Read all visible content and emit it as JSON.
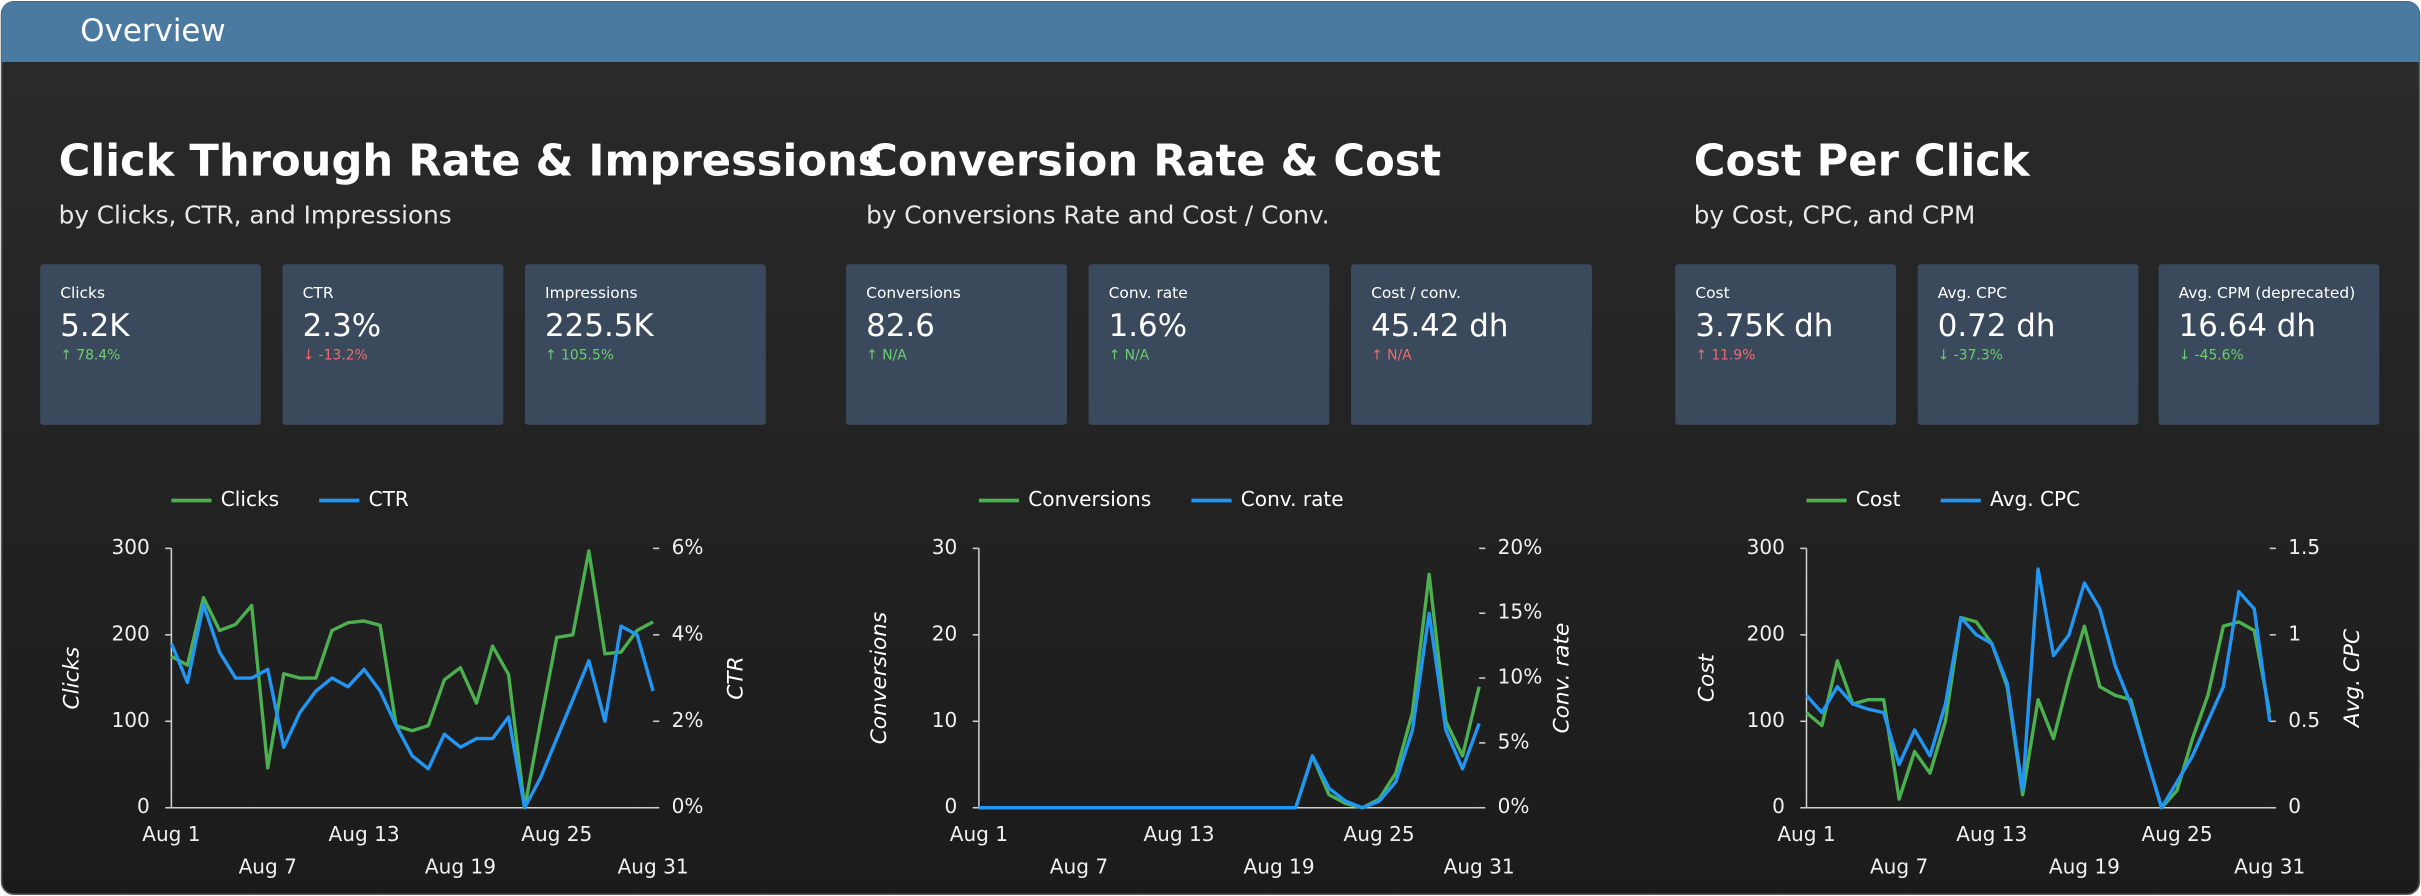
{
  "header": {
    "title": "Overview"
  },
  "sections": [
    {
      "title": "Click Through Rate & Impressions",
      "subtitle": "by Clicks, CTR, and Impressions",
      "kpis": [
        {
          "label": "Clicks",
          "value": "5.2K",
          "change": "↑ 78.4%",
          "change_color": "#6ccf6c"
        },
        {
          "label": "CTR",
          "value": "2.3%",
          "change": "↓ -13.2%",
          "change_color": "#f06a6a"
        },
        {
          "label": "Impressions",
          "value": "225.5K",
          "change": "↑ 105.5%",
          "change_color": "#6ccf6c"
        }
      ]
    },
    {
      "title": "Conversion Rate & Cost",
      "subtitle": "by Conversions Rate and Cost / Conv.",
      "kpis": [
        {
          "label": "Conversions",
          "value": "82.6",
          "change": "↑ N/A",
          "change_color": "#6ccf6c"
        },
        {
          "label": "Conv. rate",
          "value": "1.6%",
          "change": "↑ N/A",
          "change_color": "#6ccf6c"
        },
        {
          "label": "Cost / conv.",
          "value": "45.42 dh",
          "change": "↑ N/A",
          "change_color": "#f06a6a"
        }
      ]
    },
    {
      "title": "Cost Per Click",
      "subtitle": "by Cost, CPC, and CPM",
      "kpis": [
        {
          "label": "Cost",
          "value": "3.75K dh",
          "change": "↑ 11.9%",
          "change_color": "#f06a6a"
        },
        {
          "label": "Avg. CPC",
          "value": "0.72 dh",
          "change": "↓ -37.3%",
          "change_color": "#6ccf6c"
        },
        {
          "label": "Avg. CPM (deprecated)",
          "value": "16.64 dh",
          "change": "↓ -45.6%",
          "change_color": "#6ccf6c"
        }
      ]
    }
  ],
  "chart_data": [
    {
      "type": "line",
      "categories": [
        "Aug 1",
        null,
        null,
        null,
        null,
        null,
        "Aug 7",
        null,
        null,
        null,
        null,
        null,
        "Aug 13",
        null,
        null,
        null,
        null,
        null,
        "Aug 19",
        null,
        null,
        null,
        null,
        null,
        "Aug 25",
        null,
        null,
        null,
        null,
        null,
        "Aug 31"
      ],
      "ylabel": "Clicks",
      "y2label": "CTR",
      "ylim": [
        0,
        300
      ],
      "yticks": [
        0,
        100,
        200,
        300
      ],
      "y2lim": [
        0,
        6
      ],
      "y2ticks": [
        {
          "value": 0,
          "label": "0%"
        },
        {
          "value": 2,
          "label": "2%"
        },
        {
          "value": 4,
          "label": "4%"
        },
        {
          "value": 6,
          "label": "6%"
        }
      ],
      "legend": "top",
      "series": [
        {
          "name": "Clicks",
          "color": "#4caf50",
          "values": [
            175,
            165,
            243,
            205,
            212,
            234,
            46,
            155,
            150,
            150,
            205,
            214,
            216,
            211,
            95,
            89,
            95,
            148,
            162,
            121,
            187,
            154,
            0,
            100,
            197,
            200,
            297,
            178,
            180,
            205,
            215
          ]
        },
        {
          "name": "CTR",
          "color": "#2196f3",
          "axis": "y2",
          "values": [
            3.8,
            2.9,
            4.7,
            3.6,
            3.0,
            3.0,
            3.2,
            1.4,
            2.2,
            2.7,
            3.0,
            2.8,
            3.2,
            2.7,
            1.9,
            1.2,
            0.9,
            1.7,
            1.4,
            1.6,
            1.6,
            2.1,
            0,
            0.7,
            1.6,
            2.5,
            3.4,
            2.0,
            4.2,
            4.0,
            2.7
          ]
        }
      ]
    },
    {
      "type": "line",
      "categories": [
        "Aug 1",
        null,
        null,
        null,
        null,
        null,
        "Aug 7",
        null,
        null,
        null,
        null,
        null,
        "Aug 13",
        null,
        null,
        null,
        null,
        null,
        "Aug 19",
        null,
        null,
        null,
        null,
        null,
        "Aug 25",
        null,
        null,
        null,
        null,
        null,
        "Aug 31"
      ],
      "ylabel": "Conversions",
      "y2label": "Conv. rate",
      "ylim": [
        0,
        30
      ],
      "yticks": [
        0,
        10,
        20,
        30
      ],
      "y2lim": [
        0,
        20
      ],
      "y2ticks": [
        {
          "value": 0,
          "label": "0%"
        },
        {
          "value": 5,
          "label": "5%"
        },
        {
          "value": 10,
          "label": "10%"
        },
        {
          "value": 15,
          "label": "15%"
        },
        {
          "value": 20,
          "label": "20%"
        }
      ],
      "legend": "top",
      "series": [
        {
          "name": "Conversions",
          "color": "#4caf50",
          "values": [
            0,
            0,
            0,
            0,
            0,
            0,
            0,
            0,
            0,
            0,
            0,
            0,
            0,
            0,
            0,
            0,
            0,
            0,
            0,
            0,
            6,
            1.5,
            0.5,
            0,
            1,
            4,
            11,
            27,
            10,
            6,
            14
          ]
        },
        {
          "name": "Conv. rate",
          "color": "#2196f3",
          "axis": "y2",
          "values": [
            0,
            0,
            0,
            0,
            0,
            0,
            0,
            0,
            0,
            0,
            0,
            0,
            0,
            0,
            0,
            0,
            0,
            0,
            0,
            0,
            4,
            1.5,
            0.5,
            0,
            0.5,
            2,
            6,
            15,
            6,
            3,
            6.5
          ]
        }
      ]
    },
    {
      "type": "line",
      "categories": [
        "Aug 1",
        null,
        null,
        null,
        null,
        null,
        "Aug 7",
        null,
        null,
        null,
        null,
        null,
        "Aug 13",
        null,
        null,
        null,
        null,
        null,
        "Aug 19",
        null,
        null,
        null,
        null,
        null,
        "Aug 25",
        null,
        null,
        null,
        null,
        null,
        "Aug 31"
      ],
      "ylabel": "Cost",
      "y2label": "Avg. CPC",
      "ylim": [
        0,
        300
      ],
      "yticks": [
        0,
        100,
        200,
        300
      ],
      "y2lim": [
        0,
        1.5
      ],
      "y2ticks": [
        0,
        0.5,
        1,
        1.5
      ],
      "legend": "top",
      "series": [
        {
          "name": "Cost",
          "color": "#4caf50",
          "values": [
            110,
            95,
            170,
            120,
            125,
            125,
            10,
            65,
            40,
            100,
            220,
            215,
            190,
            140,
            15,
            125,
            80,
            150,
            210,
            140,
            130,
            125,
            60,
            0,
            20,
            80,
            130,
            210,
            215,
            205,
            110
          ]
        },
        {
          "name": "Avg. CPC",
          "color": "#2196f3",
          "axis": "y2",
          "values": [
            0.65,
            0.55,
            0.7,
            0.6,
            0.57,
            0.55,
            0.25,
            0.45,
            0.3,
            0.6,
            1.1,
            1.0,
            0.95,
            0.72,
            0.1,
            1.38,
            0.88,
            1.0,
            1.3,
            1.15,
            0.82,
            0.6,
            0.3,
            0,
            0.15,
            0.3,
            0.5,
            0.7,
            1.25,
            1.15,
            0.5
          ]
        }
      ]
    }
  ]
}
